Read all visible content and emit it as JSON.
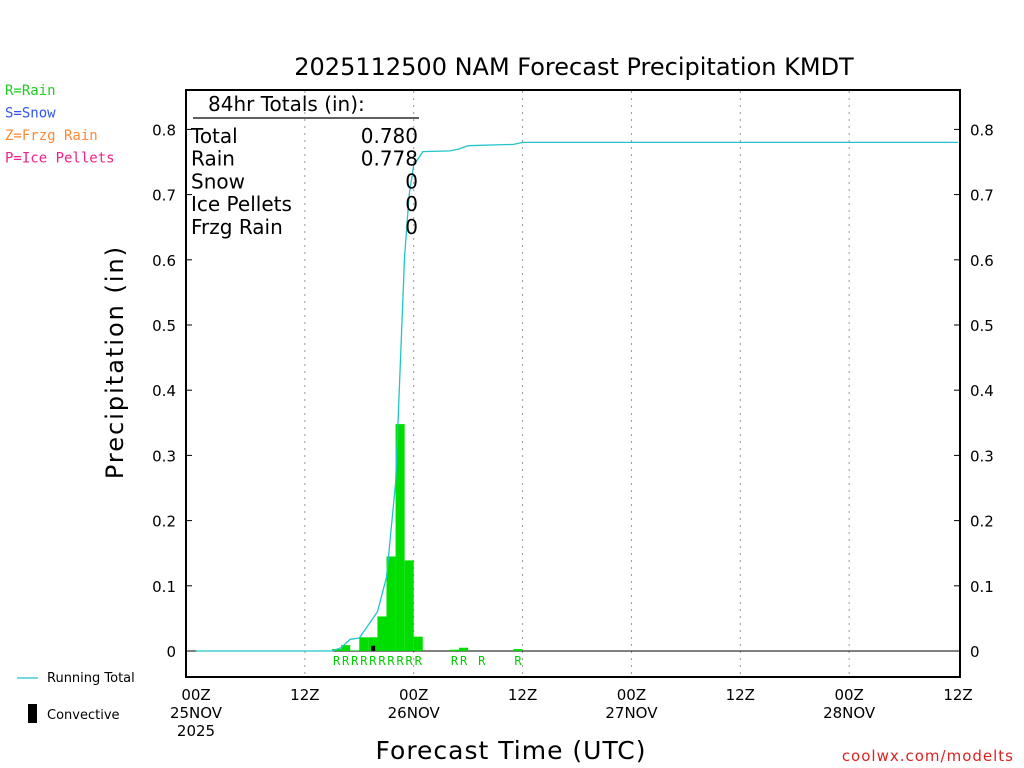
{
  "chart_data": {
    "type": "bar",
    "title": "2025112500 NAM Forecast Precipitation KMDT",
    "xlabel": "Forecast Time (UTC)",
    "ylabel": "Precipitation (in)",
    "ylim": [
      0,
      0.85
    ],
    "y_ticks": [
      "0",
      "0.1",
      "0.2",
      "0.3",
      "0.4",
      "0.5",
      "0.6",
      "0.7",
      "0.8"
    ],
    "xlim_hours": [
      0,
      84
    ],
    "x_ticks": [
      {
        "hour": 0,
        "line1": "00Z",
        "line2": "25NOV",
        "line3": "2025"
      },
      {
        "hour": 12,
        "line1": "12Z",
        "line2": "",
        "line3": ""
      },
      {
        "hour": 24,
        "line1": "00Z",
        "line2": "26NOV",
        "line3": ""
      },
      {
        "hour": 36,
        "line1": "12Z",
        "line2": "",
        "line3": ""
      },
      {
        "hour": 48,
        "line1": "00Z",
        "line2": "27NOV",
        "line3": ""
      },
      {
        "hour": 60,
        "line1": "12Z",
        "line2": "",
        "line3": ""
      },
      {
        "hour": 72,
        "line1": "00Z",
        "line2": "28NOV",
        "line3": ""
      },
      {
        "hour": 84,
        "line1": "12Z",
        "line2": "",
        "line3": ""
      }
    ],
    "grid": "vertical dotted at each tick",
    "series": [
      {
        "name": "Rain",
        "type": "bar",
        "color": "#00dd00",
        "points": [
          {
            "hour": 16,
            "value": 0.003
          },
          {
            "hour": 17,
            "value": 0.009
          },
          {
            "hour": 18,
            "value": 0.001
          },
          {
            "hour": 19,
            "value": 0.021
          },
          {
            "hour": 20,
            "value": 0.021
          },
          {
            "hour": 21,
            "value": 0.053
          },
          {
            "hour": 22,
            "value": 0.145
          },
          {
            "hour": 23,
            "value": 0.348
          },
          {
            "hour": 24,
            "value": 0.139
          },
          {
            "hour": 25,
            "value": 0.022
          },
          {
            "hour": 29,
            "value": 0.002
          },
          {
            "hour": 30,
            "value": 0.005
          },
          {
            "hour": 36,
            "value": 0.003
          }
        ]
      },
      {
        "name": "Convective",
        "type": "bar",
        "color": "#000000",
        "points": [
          {
            "hour": 20,
            "value": 0.008
          }
        ]
      },
      {
        "name": "Running Total",
        "type": "line",
        "color": "#22c4cc",
        "points": [
          {
            "hour": 0,
            "value": 0
          },
          {
            "hour": 15,
            "value": 0
          },
          {
            "hour": 16,
            "value": 0.005
          },
          {
            "hour": 17,
            "value": 0.018
          },
          {
            "hour": 18,
            "value": 0.02
          },
          {
            "hour": 20,
            "value": 0.06
          },
          {
            "hour": 21,
            "value": 0.113
          },
          {
            "hour": 22,
            "value": 0.258
          },
          {
            "hour": 23,
            "value": 0.606
          },
          {
            "hour": 23.5,
            "value": 0.7
          },
          {
            "hour": 24,
            "value": 0.745
          },
          {
            "hour": 25,
            "value": 0.766
          },
          {
            "hour": 28,
            "value": 0.767
          },
          {
            "hour": 29,
            "value": 0.77
          },
          {
            "hour": 30,
            "value": 0.775
          },
          {
            "hour": 35,
            "value": 0.777
          },
          {
            "hour": 36,
            "value": 0.78
          },
          {
            "hour": 84,
            "value": 0.78
          }
        ]
      }
    ],
    "precip_type_labels": [
      {
        "hour": 16,
        "text": "R"
      },
      {
        "hour": 17,
        "text": "R"
      },
      {
        "hour": 18,
        "text": "R"
      },
      {
        "hour": 19,
        "text": "R"
      },
      {
        "hour": 20,
        "text": "R"
      },
      {
        "hour": 21,
        "text": "R"
      },
      {
        "hour": 22,
        "text": "R"
      },
      {
        "hour": 23,
        "text": "R"
      },
      {
        "hour": 24,
        "text": "R"
      },
      {
        "hour": 25,
        "text": "R"
      },
      {
        "hour": 29,
        "text": "R"
      },
      {
        "hour": 30,
        "text": "R"
      },
      {
        "hour": 32,
        "text": "R"
      },
      {
        "hour": 36,
        "text": "R"
      }
    ],
    "totals_box": {
      "heading": "84hr Totals (in):",
      "rows": [
        {
          "label": "Total",
          "value": "0.780"
        },
        {
          "label": "Rain",
          "value": "0.778"
        },
        {
          "label": "Snow",
          "value": "0"
        },
        {
          "label": "Ice Pellets",
          "value": "0"
        },
        {
          "label": "Frzg Rain",
          "value": "0"
        }
      ]
    }
  },
  "precip_type_key": [
    {
      "text": "R=Rain",
      "color": "#22cc22"
    },
    {
      "text": "S=Snow",
      "color": "#3355ee"
    },
    {
      "text": "Z=Frzg Rain",
      "color": "#ff8833"
    },
    {
      "text": "P=Ice Pellets",
      "color": "#ee2288"
    }
  ],
  "legend": {
    "running_total_label": "Running Total",
    "convective_label": "Convective"
  },
  "credit": {
    "text": "coolwx.com/modelts",
    "color": "#dd2222"
  }
}
